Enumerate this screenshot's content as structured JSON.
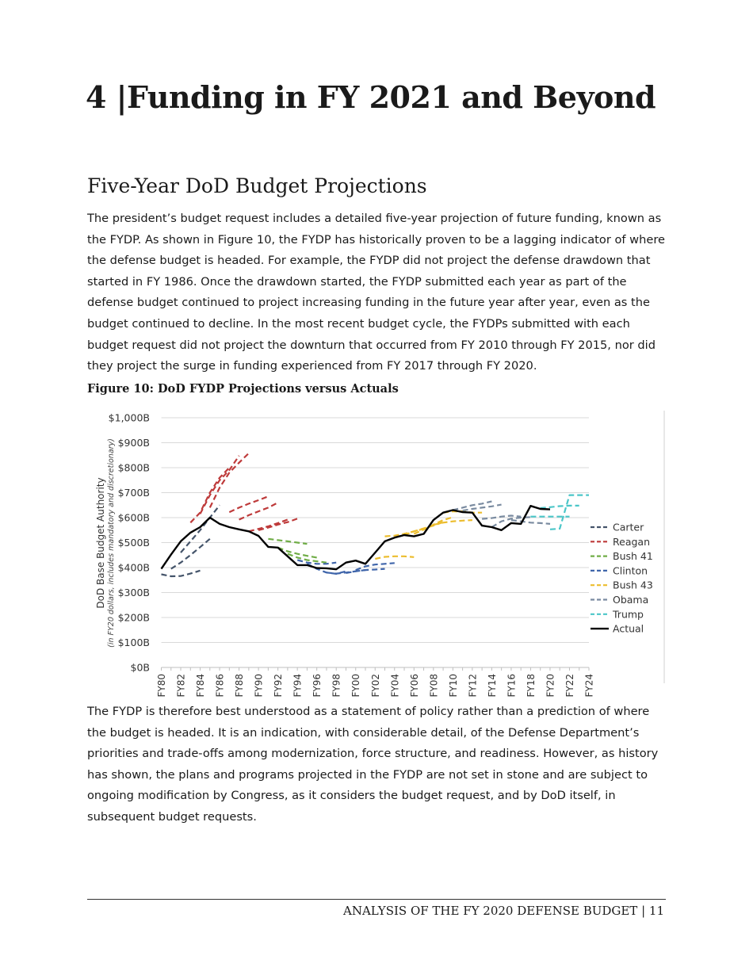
{
  "chapter_title": "4 |Funding in FY 2021 and Beyond",
  "section_title": "Five-Year DoD Budget Projections",
  "paragraph_1": "The president’s budget request includes a detailed five-year projection of future funding, known as the FYDP. As shown in Figure 10, the FYDP has historically proven to be a lagging indicator of where the defense budget is headed. For example, the FYDP did not project the defense drawdown that started in FY 1986. Once the drawdown started, the FYDP submitted each year as part of the defense budget continued to project increasing funding in the future year after year, even as the budget continued to decline. In the most recent budget cycle, the FYDPs submitted with each budget request did not project the downturn that occurred from FY 2010 through FY 2015, nor did they project the surge in funding experienced from FY 2017 through FY 2020.",
  "figure_title": "Figure 10: DoD FYDP Projections versus Actuals",
  "paragraph_2": "The FYDP is therefore best understood as a statement of policy rather than a prediction of where the budget is headed. It is an indication, with considerable detail, of the Defense Department’s priorities and trade-offs among modernization, force structure, and readiness. However, as history has shown, the plans and programs projected in the FYDP are not set in stone and are subject to ongoing modification by Congress, as it considers the budget request, and by DoD itself, in subsequent budget requests.",
  "footer": "ANALYSIS OF THE FY 2020 DEFENSE BUDGET | 11",
  "chart_data": {
    "type": "line",
    "title": "",
    "ylabel": "DoD Base Budget Authority",
    "ylabel_sub": "(in FY20 dollars, includes mandatory and discretionary)",
    "xlabel": "",
    "ylim": [
      0,
      1000
    ],
    "y_ticks": [
      "$0B",
      "$100B",
      "$200B",
      "$300B",
      "$400B",
      "$500B",
      "$600B",
      "$700B",
      "$800B",
      "$900B",
      "$1,000B"
    ],
    "x_range": [
      1980,
      2024
    ],
    "x_ticks": [
      "FY80",
      "FY82",
      "FY84",
      "FY86",
      "FY88",
      "FY90",
      "FY92",
      "FY94",
      "FY96",
      "FY98",
      "FY00",
      "FY02",
      "FY04",
      "FY06",
      "FY08",
      "FY10",
      "FY12",
      "FY14",
      "FY16",
      "FY18",
      "FY20",
      "FY22",
      "FY24"
    ],
    "grid": true,
    "legend_position": "right",
    "series": [
      {
        "name": "Carter",
        "color": "#44546a",
        "style": "dashed",
        "projections": [
          {
            "start": 1980,
            "values": [
              373,
              365,
              366,
              376,
              388
            ]
          },
          {
            "start": 1981,
            "values": [
              395,
              420,
              450,
              482,
              515
            ]
          },
          {
            "start": 1982,
            "values": [
              460,
              505,
              550,
              600,
              650
            ]
          }
        ]
      },
      {
        "name": "Reagan",
        "color": "#be3a3a",
        "style": "dashed",
        "projections": [
          {
            "start": 1983,
            "values": [
              580,
              620,
              700,
              760,
              800
            ]
          },
          {
            "start": 1984,
            "values": [
              615,
              690,
              750,
              790,
              848
            ]
          },
          {
            "start": 1985,
            "values": [
              640,
              720,
              780,
              820,
              858
            ]
          },
          {
            "start": 1987,
            "values": [
              622,
              640,
              656,
              670,
              685
            ]
          },
          {
            "start": 1988,
            "values": [
              592,
              610,
              625,
              640,
              660
            ]
          },
          {
            "start": 1989,
            "values": [
              545,
              555,
              565,
              578,
              592
            ]
          },
          {
            "start": 1990,
            "values": [
              550,
              560,
              572,
              582,
              596
            ]
          }
        ]
      },
      {
        "name": "Bush 41",
        "color": "#70ad47",
        "style": "dashed",
        "projections": [
          {
            "start": 1991,
            "values": [
              515,
              510,
              505,
              500,
              495
            ]
          },
          {
            "start": 1992,
            "values": [
              480,
              465,
              455,
              447,
              440
            ]
          },
          {
            "start": 1993,
            "values": [
              455,
              440,
              430,
              425,
              420
            ]
          }
        ]
      },
      {
        "name": "Clinton",
        "color": "#3f65aa",
        "style": "dashed",
        "projections": [
          {
            "start": 1994,
            "values": [
              430,
              420,
              415,
              415,
              420
            ]
          },
          {
            "start": 1995,
            "values": [
              415,
              395,
              380,
              375,
              385
            ]
          },
          {
            "start": 1997,
            "values": [
              380,
              376,
              380,
              385,
              390
            ]
          },
          {
            "start": 1999,
            "values": [
              378,
              385,
              390,
              392,
              395
            ]
          },
          {
            "start": 2000,
            "values": [
              390,
              405,
              412,
              415,
              418
            ]
          }
        ]
      },
      {
        "name": "Bush 43",
        "color": "#ecbd2e",
        "style": "dashed",
        "projections": [
          {
            "start": 2002,
            "values": [
              435,
              443,
              445,
              445,
              442
            ]
          },
          {
            "start": 2003,
            "values": [
              525,
              528,
              535,
              545,
              555
            ]
          },
          {
            "start": 2005,
            "values": [
              530,
              545,
              557,
              568,
              582
            ]
          },
          {
            "start": 2006,
            "values": [
              535,
              552,
              572,
              590,
              602
            ]
          },
          {
            "start": 2008,
            "values": [
              571,
              580,
              585,
              588,
              590
            ]
          },
          {
            "start": 2009,
            "values": [
              620,
              625,
              625,
              620,
              620
            ]
          }
        ]
      },
      {
        "name": "Obama",
        "color": "#7a8ba0",
        "style": "dashed",
        "projections": [
          {
            "start": 2010,
            "values": [
              630,
              640,
              650,
              656,
              665
            ]
          },
          {
            "start": 2011,
            "values": [
              628,
              635,
              640,
              645,
              652
            ]
          },
          {
            "start": 2013,
            "values": [
              595,
              598,
              604,
              608,
              604
            ]
          },
          {
            "start": 2014,
            "values": [
              562,
              585,
              596,
              600,
              602
            ]
          },
          {
            "start": 2016,
            "values": [
              590,
              585,
              580,
              578,
              575
            ]
          }
        ]
      },
      {
        "name": "Trump",
        "color": "#4bc6c8",
        "style": "dashed",
        "projections": [
          {
            "start": 2018,
            "values": [
              604,
              604,
              604,
              604,
              604
            ]
          },
          {
            "start": 2019,
            "values": [
              638,
              642,
              646,
              648,
              648
            ]
          },
          {
            "start": 2020,
            "values": [
              553,
              556,
              690,
              690,
              690
            ]
          }
        ]
      },
      {
        "name": "Actual",
        "color": "#000000",
        "style": "solid",
        "projections": [
          {
            "start": 1980,
            "values": [
              395,
              452,
              505,
              540,
              562,
              600,
              575,
              562,
              553,
              545,
              527,
              483,
              480,
              445,
              410,
              410,
              398,
              397,
              393,
              420,
              428,
              415,
              460,
              505,
              520,
              530,
              525,
              535,
              590,
              620,
              630,
              622,
              620,
              568,
              562,
              550,
              578,
              575,
              647,
              635,
              633
            ]
          }
        ]
      }
    ]
  }
}
